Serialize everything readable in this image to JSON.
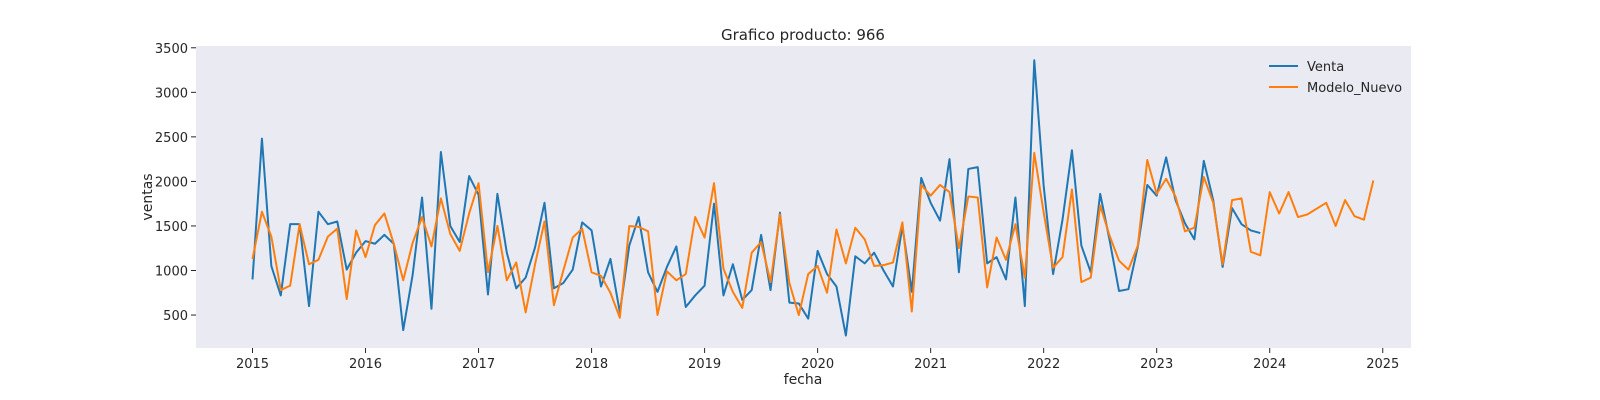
{
  "chart_data": {
    "type": "line",
    "title": "Grafico producto: 966",
    "xlabel": "fecha",
    "ylabel": "ventas",
    "x_ticks": [
      "2015",
      "2016",
      "2017",
      "2018",
      "2019",
      "2020",
      "2021",
      "2022",
      "2023",
      "2024",
      "2025"
    ],
    "y_ticks": [
      500,
      1000,
      1500,
      2000,
      2500,
      3000,
      3500
    ],
    "xlim": [
      "2014-07",
      "2025-04"
    ],
    "ylim": [
      130,
      3520
    ],
    "grid": false,
    "legend": "top-right",
    "background": "#eaeaf2",
    "series": [
      {
        "name": "Venta",
        "color": "#1f77b4",
        "points": [
          [
            "2015-01",
            900
          ],
          [
            "2015-02",
            2480
          ],
          [
            "2015-03",
            1050
          ],
          [
            "2015-04",
            720
          ],
          [
            "2015-05",
            1520
          ],
          [
            "2015-06",
            1520
          ],
          [
            "2015-07",
            600
          ],
          [
            "2015-08",
            1660
          ],
          [
            "2015-09",
            1520
          ],
          [
            "2015-10",
            1550
          ],
          [
            "2015-11",
            1010
          ],
          [
            "2015-12",
            1200
          ],
          [
            "2016-01",
            1330
          ],
          [
            "2016-02",
            1300
          ],
          [
            "2016-03",
            1400
          ],
          [
            "2016-04",
            1300
          ],
          [
            "2016-05",
            330
          ],
          [
            "2016-06",
            950
          ],
          [
            "2016-07",
            1820
          ],
          [
            "2016-08",
            570
          ],
          [
            "2016-09",
            2330
          ],
          [
            "2016-10",
            1500
          ],
          [
            "2016-11",
            1320
          ],
          [
            "2016-12",
            2060
          ],
          [
            "2017-01",
            1850
          ],
          [
            "2017-02",
            730
          ],
          [
            "2017-03",
            1860
          ],
          [
            "2017-04",
            1200
          ],
          [
            "2017-05",
            800
          ],
          [
            "2017-06",
            920
          ],
          [
            "2017-07",
            1260
          ],
          [
            "2017-08",
            1760
          ],
          [
            "2017-09",
            800
          ],
          [
            "2017-10",
            860
          ],
          [
            "2017-11",
            1010
          ],
          [
            "2017-12",
            1540
          ],
          [
            "2018-01",
            1450
          ],
          [
            "2018-02",
            820
          ],
          [
            "2018-03",
            1130
          ],
          [
            "2018-04",
            530
          ],
          [
            "2018-05",
            1280
          ],
          [
            "2018-06",
            1600
          ],
          [
            "2018-07",
            980
          ],
          [
            "2018-08",
            760
          ],
          [
            "2018-09",
            1040
          ],
          [
            "2018-10",
            1270
          ],
          [
            "2018-11",
            590
          ],
          [
            "2018-12",
            720
          ],
          [
            "2019-01",
            830
          ],
          [
            "2019-02",
            1750
          ],
          [
            "2019-03",
            720
          ],
          [
            "2019-04",
            1070
          ],
          [
            "2019-05",
            670
          ],
          [
            "2019-06",
            780
          ],
          [
            "2019-07",
            1400
          ],
          [
            "2019-08",
            780
          ],
          [
            "2019-09",
            1650
          ],
          [
            "2019-10",
            640
          ],
          [
            "2019-11",
            630
          ],
          [
            "2019-12",
            460
          ],
          [
            "2020-01",
            1220
          ],
          [
            "2020-02",
            960
          ],
          [
            "2020-03",
            820
          ],
          [
            "2020-04",
            270
          ],
          [
            "2020-05",
            1160
          ],
          [
            "2020-06",
            1080
          ],
          [
            "2020-07",
            1200
          ],
          [
            "2020-08",
            1000
          ],
          [
            "2020-09",
            820
          ],
          [
            "2020-10",
            1500
          ],
          [
            "2020-11",
            760
          ],
          [
            "2020-12",
            2040
          ],
          [
            "2021-01",
            1760
          ],
          [
            "2021-02",
            1560
          ],
          [
            "2021-03",
            2250
          ],
          [
            "2021-04",
            980
          ],
          [
            "2021-05",
            2140
          ],
          [
            "2021-06",
            2160
          ],
          [
            "2021-07",
            1080
          ],
          [
            "2021-08",
            1150
          ],
          [
            "2021-09",
            900
          ],
          [
            "2021-10",
            1820
          ],
          [
            "2021-11",
            600
          ],
          [
            "2021-12",
            3360
          ],
          [
            "2022-01",
            1950
          ],
          [
            "2022-02",
            960
          ],
          [
            "2022-03",
            1570
          ],
          [
            "2022-04",
            2350
          ],
          [
            "2022-05",
            1280
          ],
          [
            "2022-06",
            980
          ],
          [
            "2022-07",
            1860
          ],
          [
            "2022-08",
            1340
          ],
          [
            "2022-09",
            770
          ],
          [
            "2022-10",
            790
          ],
          [
            "2022-11",
            1270
          ],
          [
            "2022-12",
            1960
          ],
          [
            "2023-01",
            1840
          ],
          [
            "2023-02",
            2270
          ],
          [
            "2023-03",
            1790
          ],
          [
            "2023-04",
            1530
          ],
          [
            "2023-05",
            1350
          ],
          [
            "2023-06",
            2230
          ],
          [
            "2023-07",
            1790
          ],
          [
            "2023-08",
            1040
          ],
          [
            "2023-09",
            1700
          ],
          [
            "2023-10",
            1520
          ],
          [
            "2023-11",
            1450
          ],
          [
            "2023-12",
            1420
          ]
        ]
      },
      {
        "name": "Modelo_Nuevo",
        "color": "#ff7f0e",
        "points": [
          [
            "2015-01",
            1130
          ],
          [
            "2015-02",
            1660
          ],
          [
            "2015-03",
            1380
          ],
          [
            "2015-04",
            780
          ],
          [
            "2015-05",
            830
          ],
          [
            "2015-06",
            1520
          ],
          [
            "2015-07",
            1070
          ],
          [
            "2015-08",
            1120
          ],
          [
            "2015-09",
            1380
          ],
          [
            "2015-10",
            1470
          ],
          [
            "2015-11",
            680
          ],
          [
            "2015-12",
            1450
          ],
          [
            "2016-01",
            1150
          ],
          [
            "2016-02",
            1510
          ],
          [
            "2016-03",
            1640
          ],
          [
            "2016-04",
            1300
          ],
          [
            "2016-05",
            890
          ],
          [
            "2016-06",
            1310
          ],
          [
            "2016-07",
            1600
          ],
          [
            "2016-08",
            1270
          ],
          [
            "2016-09",
            1810
          ],
          [
            "2016-10",
            1410
          ],
          [
            "2016-11",
            1220
          ],
          [
            "2016-12",
            1640
          ],
          [
            "2017-01",
            1980
          ],
          [
            "2017-02",
            980
          ],
          [
            "2017-03",
            1500
          ],
          [
            "2017-04",
            890
          ],
          [
            "2017-05",
            1090
          ],
          [
            "2017-06",
            530
          ],
          [
            "2017-07",
            1070
          ],
          [
            "2017-08",
            1550
          ],
          [
            "2017-09",
            610
          ],
          [
            "2017-10",
            1000
          ],
          [
            "2017-11",
            1370
          ],
          [
            "2017-12",
            1470
          ],
          [
            "2018-01",
            980
          ],
          [
            "2018-02",
            940
          ],
          [
            "2018-03",
            750
          ],
          [
            "2018-04",
            470
          ],
          [
            "2018-05",
            1500
          ],
          [
            "2018-06",
            1490
          ],
          [
            "2018-07",
            1440
          ],
          [
            "2018-08",
            500
          ],
          [
            "2018-09",
            990
          ],
          [
            "2018-10",
            890
          ],
          [
            "2018-11",
            960
          ],
          [
            "2018-12",
            1600
          ],
          [
            "2019-01",
            1370
          ],
          [
            "2019-02",
            1980
          ],
          [
            "2019-03",
            1020
          ],
          [
            "2019-04",
            760
          ],
          [
            "2019-05",
            580
          ],
          [
            "2019-06",
            1200
          ],
          [
            "2019-07",
            1320
          ],
          [
            "2019-08",
            870
          ],
          [
            "2019-09",
            1630
          ],
          [
            "2019-10",
            860
          ],
          [
            "2019-11",
            500
          ],
          [
            "2019-12",
            960
          ],
          [
            "2020-01",
            1050
          ],
          [
            "2020-02",
            750
          ],
          [
            "2020-03",
            1460
          ],
          [
            "2020-04",
            1080
          ],
          [
            "2020-05",
            1480
          ],
          [
            "2020-06",
            1350
          ],
          [
            "2020-07",
            1050
          ],
          [
            "2020-08",
            1060
          ],
          [
            "2020-09",
            1090
          ],
          [
            "2020-10",
            1540
          ],
          [
            "2020-11",
            540
          ],
          [
            "2020-12",
            1960
          ],
          [
            "2021-01",
            1840
          ],
          [
            "2021-02",
            1960
          ],
          [
            "2021-03",
            1880
          ],
          [
            "2021-04",
            1250
          ],
          [
            "2021-05",
            1830
          ],
          [
            "2021-06",
            1820
          ],
          [
            "2021-07",
            810
          ],
          [
            "2021-08",
            1370
          ],
          [
            "2021-09",
            1120
          ],
          [
            "2021-10",
            1520
          ],
          [
            "2021-11",
            920
          ],
          [
            "2021-12",
            2320
          ],
          [
            "2022-01",
            1650
          ],
          [
            "2022-02",
            1030
          ],
          [
            "2022-03",
            1150
          ],
          [
            "2022-04",
            1910
          ],
          [
            "2022-05",
            870
          ],
          [
            "2022-06",
            920
          ],
          [
            "2022-07",
            1730
          ],
          [
            "2022-08",
            1390
          ],
          [
            "2022-09",
            1110
          ],
          [
            "2022-10",
            1010
          ],
          [
            "2022-11",
            1280
          ],
          [
            "2022-12",
            2240
          ],
          [
            "2023-01",
            1860
          ],
          [
            "2023-02",
            2030
          ],
          [
            "2023-03",
            1830
          ],
          [
            "2023-04",
            1440
          ],
          [
            "2023-05",
            1480
          ],
          [
            "2023-06",
            2050
          ],
          [
            "2023-07",
            1760
          ],
          [
            "2023-08",
            1070
          ],
          [
            "2023-09",
            1790
          ],
          [
            "2023-10",
            1810
          ],
          [
            "2023-11",
            1210
          ],
          [
            "2023-12",
            1170
          ],
          [
            "2024-01",
            1880
          ],
          [
            "2024-02",
            1640
          ],
          [
            "2024-03",
            1880
          ],
          [
            "2024-04",
            1600
          ],
          [
            "2024-05",
            1630
          ],
          [
            "2024-07",
            1760
          ],
          [
            "2024-08",
            1500
          ],
          [
            "2024-09",
            1790
          ],
          [
            "2024-10",
            1610
          ],
          [
            "2024-11",
            1570
          ],
          [
            "2024-12",
            2010
          ]
        ]
      }
    ]
  }
}
